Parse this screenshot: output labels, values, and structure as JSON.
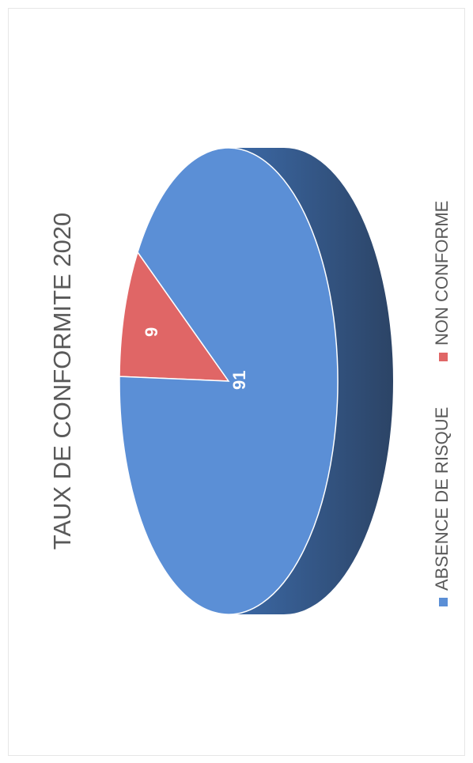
{
  "chart_data": {
    "type": "pie",
    "title": "TAUX DE CONFORMITE 2020",
    "slices": [
      {
        "label": "ABSENCE DE RISQUE",
        "value": 91,
        "color": "#5b8fd6"
      },
      {
        "label": "NON CONFORME",
        "value": 9,
        "color": "#e06666"
      }
    ],
    "style": "3d",
    "orientation": "rotated-90",
    "legend_position": "bottom",
    "data_labels": true
  },
  "colors": {
    "side_dark": "#2c4466",
    "side_mid": "#3c6aa8",
    "label_text": "#ffffff",
    "title_text": "#595959",
    "legend_text": "#595959"
  }
}
